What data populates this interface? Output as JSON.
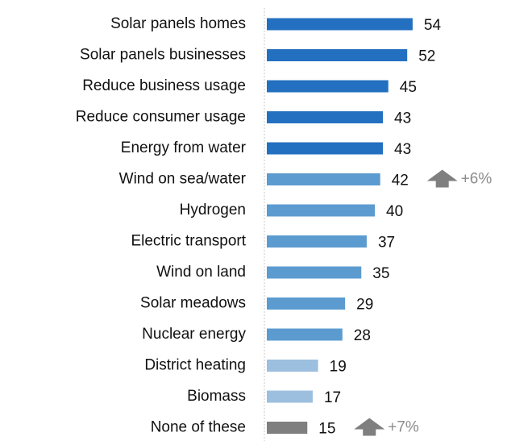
{
  "chart_data": {
    "type": "bar",
    "orientation": "horizontal",
    "categories": [
      "Solar panels homes",
      "Solar panels businesses",
      "Reduce business usage",
      "Reduce consumer usage",
      "Energy from water",
      "Wind on sea/water",
      "Hydrogen",
      "Electric transport",
      "Wind on land",
      "Solar meadows",
      "Nuclear energy",
      "District heating",
      "Biomass",
      "None of these"
    ],
    "values": [
      54,
      52,
      45,
      43,
      43,
      42,
      40,
      37,
      35,
      29,
      28,
      19,
      17,
      15
    ],
    "colors": [
      "#2470c0",
      "#2470c0",
      "#2470c0",
      "#2470c0",
      "#2470c0",
      "#5b9bd0",
      "#5b9bd0",
      "#5b9bd0",
      "#5b9bd0",
      "#5b9bd0",
      "#5b9bd0",
      "#9dbfdf",
      "#9dbfdf",
      "#7f7f7f"
    ],
    "annotations": [
      {
        "category": "Wind on sea/water",
        "text": "+6%"
      },
      {
        "category": "None of these",
        "text": "+7%"
      }
    ]
  }
}
